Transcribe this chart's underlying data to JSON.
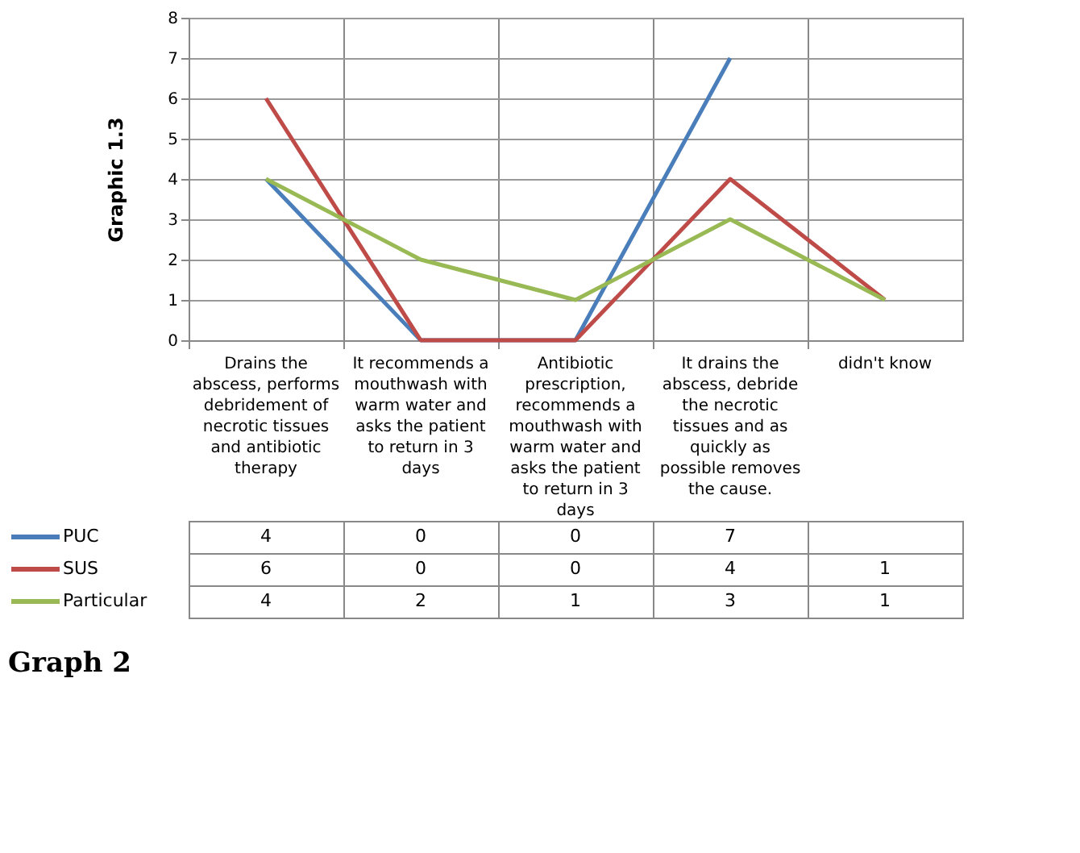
{
  "chart_data": {
    "type": "line",
    "ylabel": "Graphic 1.3",
    "annotations": [
      "Graph 2"
    ],
    "categories": [
      "Drains the abscess, performs debridement of necrotic tissues and antibiotic therapy",
      "It recommends a mouthwash with warm water and asks the patient to return in 3 days",
      "Antibiotic prescription, recommends a mouthwash with warm water and asks the patient to return in 3 days",
      "It drains the abscess, debride the necrotic tissues and as quickly as possible removes the cause.",
      "didn't know"
    ],
    "series": [
      {
        "name": "PUC",
        "color": "#4a7ebb",
        "values": [
          4,
          0,
          0,
          7,
          null
        ]
      },
      {
        "name": "SUS",
        "color": "#be4b48",
        "values": [
          6,
          0,
          0,
          4,
          1
        ]
      },
      {
        "name": "Particular",
        "color": "#98b954",
        "values": [
          4,
          2,
          1,
          3,
          1
        ]
      }
    ],
    "ylim": [
      0,
      8
    ],
    "yticks": [
      0,
      1,
      2,
      3,
      4,
      5,
      6,
      7,
      8
    ],
    "grid": "y",
    "legend": "bottom left",
    "marker": "none",
    "line_style": "solid",
    "data_labels": true
  }
}
